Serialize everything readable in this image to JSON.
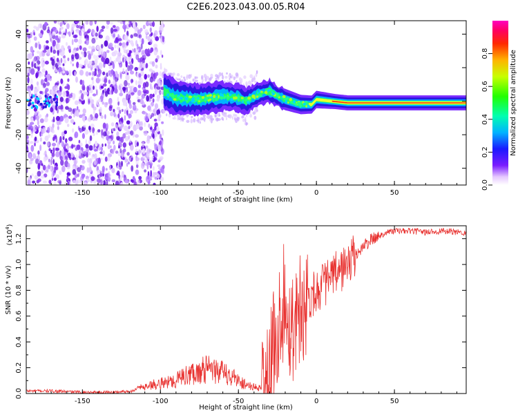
{
  "title": "C2E6.2023.043.00.05.R04",
  "colors": {
    "snr_line": "#e8302e",
    "noise_purple": "#6a11e6",
    "ridge_blue": "#1010d0",
    "background": "#ffffff"
  },
  "chart_data": [
    {
      "type": "heatmap",
      "xlabel": "Height of straight line (km)",
      "ylabel": "Frequency (Hz)",
      "xlim": [
        -186,
        96
      ],
      "ylim": [
        -50,
        48
      ],
      "x_ticks": [
        -150,
        -100,
        -50,
        0,
        50
      ],
      "y_ticks": [
        -40,
        -20,
        0,
        20,
        40
      ],
      "colorbar": {
        "label": "Normalized spectral amplitude",
        "range": [
          0,
          1
        ],
        "ticks": [
          0.0,
          0.2,
          0.4,
          0.6,
          0.8
        ]
      },
      "grid": false,
      "description_of_signal": {
        "noise_region_x": [
          -186,
          -98
        ],
        "ridge_center_freq": [
          {
            "x": -98,
            "y": 6
          },
          {
            "x": -90,
            "y": 2
          },
          {
            "x": -75,
            "y": 1
          },
          {
            "x": -60,
            "y": 3
          },
          {
            "x": -50,
            "y": 2
          },
          {
            "x": -45,
            "y": 0
          },
          {
            "x": -38,
            "y": 4
          },
          {
            "x": -30,
            "y": 6
          },
          {
            "x": -25,
            "y": 3
          },
          {
            "x": -20,
            "y": 1
          },
          {
            "x": -10,
            "y": -2
          },
          {
            "x": -3,
            "y": -2
          },
          {
            "x": 0,
            "y": 1
          },
          {
            "x": 10,
            "y": 0
          },
          {
            "x": 20,
            "y": -1
          },
          {
            "x": 50,
            "y": -1
          },
          {
            "x": 96,
            "y": -1
          }
        ]
      }
    },
    {
      "type": "line",
      "xlabel": "Height of straight line (km)",
      "ylabel": "SNR (10 * v/v)",
      "y_multiplier": "(x10⁴)",
      "y_multiplier_base": "(x10",
      "y_multiplier_exp": "4",
      "y_multiplier_close": ")",
      "xlim": [
        -186,
        96
      ],
      "ylim": [
        0,
        1.3
      ],
      "x_ticks": [
        -150,
        -100,
        -50,
        0,
        50
      ],
      "y_ticks": [
        0.0,
        0.2,
        0.4,
        0.6,
        0.8,
        1.0,
        1.2
      ],
      "grid": false,
      "series": [
        {
          "x": [
            -186,
            -170,
            -150,
            -130,
            -118,
            -112,
            -105,
            -100,
            -95,
            -90,
            -85,
            -80,
            -75,
            -70,
            -65,
            -60,
            -55,
            -50,
            -45,
            -40,
            -35,
            -30,
            -28,
            -25,
            -22,
            -20,
            -18,
            -16,
            -14,
            -12,
            -10,
            -8,
            -5,
            -2,
            0,
            5,
            10,
            15,
            20,
            25,
            30,
            35,
            40,
            45,
            50,
            60,
            70,
            80,
            90,
            96
          ],
          "y": [
            0.02,
            0.02,
            0.01,
            0.01,
            0.02,
            0.05,
            0.07,
            0.08,
            0.09,
            0.11,
            0.13,
            0.16,
            0.18,
            0.19,
            0.18,
            0.16,
            0.14,
            0.1,
            0.07,
            0.05,
            0.04,
            0.1,
            0.35,
            0.45,
            0.7,
            0.62,
            0.55,
            0.5,
            0.58,
            0.65,
            0.68,
            0.7,
            0.74,
            0.78,
            0.8,
            0.85,
            0.9,
            0.95,
            1.0,
            1.07,
            1.14,
            1.19,
            1.22,
            1.25,
            1.26,
            1.26,
            1.25,
            1.26,
            1.25,
            1.25
          ]
        }
      ]
    }
  ]
}
